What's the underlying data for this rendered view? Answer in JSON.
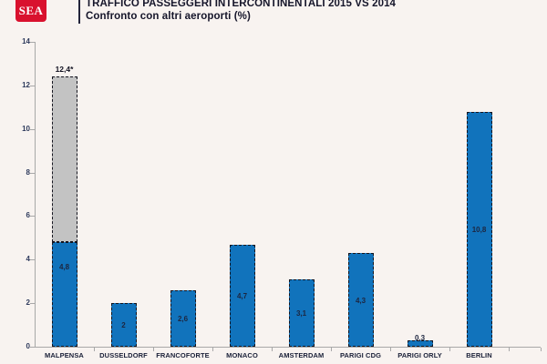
{
  "header": {
    "logo_text": "SEA",
    "title": "TRAFFICO PASSEGGERI INTERCONTINENTALI 2015 VS 2014",
    "subtitle": "Confronto con altri aeroporti (%)"
  },
  "colors": {
    "background": "#f8f3f0",
    "bar_blue": "#1173bc",
    "stacked_gray": "#c3c3c3",
    "logo_red": "#d9112e",
    "axis_gray": "#a8a8a8",
    "title_dark": "#15152a"
  },
  "chart_data": {
    "type": "bar",
    "title": "TRAFFICO PASSEGGERI INTERCONTINENTALI 2015 VS 2014",
    "subtitle": "Confronto con altri aeroporti (%)",
    "categories": [
      "MALPENSA",
      "DUSSELDORF",
      "FRANCOFORTE",
      "MONACO",
      "AMSTERDAM",
      "PARIGI CDG",
      "PARIGI ORLY",
      "BERLIN"
    ],
    "values": [
      4.8,
      2,
      2.6,
      4.7,
      3.1,
      4.3,
      0.3,
      10.8
    ],
    "value_labels": [
      "4,8",
      "2",
      "2,6",
      "4,7",
      "3,1",
      "4,3",
      "0,3",
      "10,8"
    ],
    "stacked_segment": {
      "category": "MALPENSA",
      "from": 4.8,
      "to": 12.4,
      "label": "12,4*",
      "style": "gray dashed"
    },
    "xlabel": "",
    "ylabel": "",
    "ylim": [
      0,
      14
    ],
    "yticks": [
      0,
      2,
      4,
      6,
      8,
      10,
      12,
      14
    ],
    "grid": false,
    "legend": "none"
  }
}
